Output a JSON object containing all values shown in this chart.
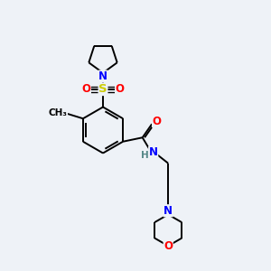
{
  "bg_color": "#eef2f7",
  "bond_color": "#000000",
  "bond_width": 1.4,
  "atom_colors": {
    "N": "#0000ff",
    "O": "#ff0000",
    "S": "#cccc00",
    "C": "#000000",
    "H": "#558888"
  },
  "font_size_atom": 8.5
}
